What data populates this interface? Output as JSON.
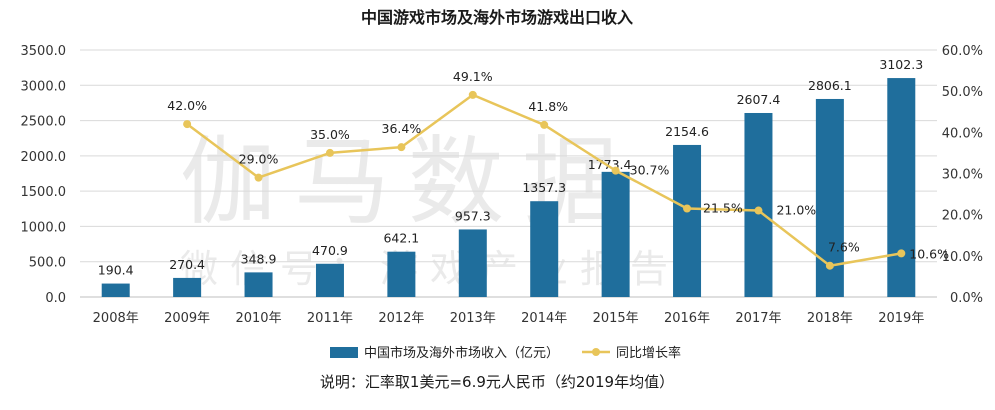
{
  "chart_data": {
    "type": "bar+line",
    "title": "中国游戏市场及海外市场游戏出口收入",
    "categories": [
      "2008年",
      "2009年",
      "2010年",
      "2011年",
      "2012年",
      "2013年",
      "2014年",
      "2015年",
      "2016年",
      "2017年",
      "2018年",
      "2019年"
    ],
    "series": [
      {
        "name": "中国市场及海外市场收入（亿元）",
        "type": "bar",
        "axis": "left",
        "color": "#1f6e9c",
        "values": [
          190.4,
          270.4,
          348.9,
          470.9,
          642.1,
          957.3,
          1357.3,
          1773.4,
          2154.6,
          2607.4,
          2806.1,
          3102.3
        ],
        "labels": [
          "190.4",
          "270.4",
          "348.9",
          "470.9",
          "642.1",
          "957.3",
          "1357.3",
          "1773.4",
          "2154.6",
          "2607.4",
          "2806.1",
          "3102.3"
        ]
      },
      {
        "name": "同比增长率",
        "type": "line",
        "axis": "right",
        "color": "#e8c55a",
        "values": [
          null,
          42.0,
          29.0,
          35.0,
          36.4,
          49.1,
          41.8,
          30.7,
          21.5,
          21.0,
          7.6,
          10.6
        ],
        "labels": [
          "",
          "42.0%",
          "29.0%",
          "35.0%",
          "36.4%",
          "49.1%",
          "41.8%",
          "30.7%",
          "21.5%",
          "21.0%",
          "7.6%",
          "10.6%"
        ]
      }
    ],
    "y_left": {
      "min": 0,
      "max": 3500,
      "ticks": [
        "0.0",
        "500.0",
        "1000.0",
        "1500.0",
        "2000.0",
        "2500.0",
        "3000.0",
        "3500.0"
      ]
    },
    "y_right": {
      "min": 0,
      "max": 60,
      "ticks": [
        "0.0%",
        "10.0%",
        "20.0%",
        "30.0%",
        "40.0%",
        "50.0%",
        "60.0%"
      ]
    },
    "grid": true,
    "legend_position": "bottom",
    "note": "说明：汇率取1美元=6.9元人民币（约2019年均值）",
    "watermark": {
      "main": "伽马数据",
      "sub": "微信号：游戏产业报告"
    }
  }
}
